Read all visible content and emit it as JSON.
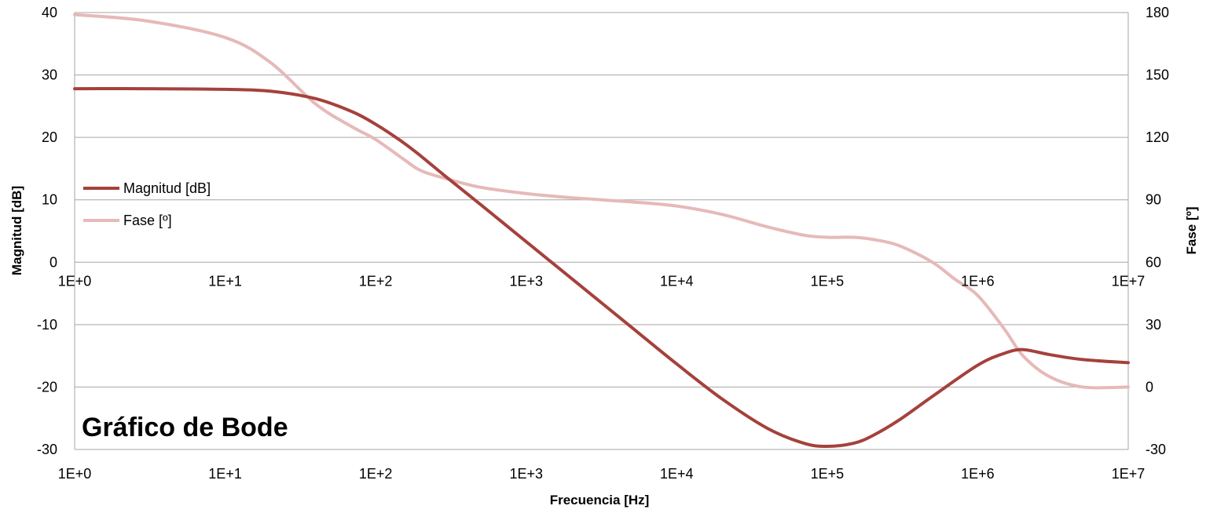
{
  "chart_data": {
    "type": "line",
    "title": "Gráfico de Bode",
    "xlabel": "Frecuencia [Hz]",
    "ylabel": "Magnitud [dB]",
    "y2label": "Fase [º]",
    "x_scale": "log",
    "xlim": [
      1,
      10000000
    ],
    "ylim": [
      -30,
      40
    ],
    "y2lim": [
      -30,
      180
    ],
    "grid": true,
    "legend_position": "left",
    "x_ticks": [
      "1E+0",
      "1E+1",
      "1E+2",
      "1E+3",
      "1E+4",
      "1E+5",
      "1E+6",
      "1E+7"
    ],
    "x_tick_values": [
      1,
      10,
      100,
      1000,
      10000,
      100000,
      1000000,
      10000000
    ],
    "y_ticks": [
      "40",
      "30",
      "20",
      "10",
      "0",
      "-10",
      "-20",
      "-30"
    ],
    "y_tick_values": [
      40,
      30,
      20,
      10,
      0,
      -10,
      -20,
      -30
    ],
    "y2_ticks": [
      "180",
      "150",
      "120",
      "90",
      "60",
      "30",
      "0",
      "-30"
    ],
    "y2_tick_values": [
      180,
      150,
      120,
      90,
      60,
      30,
      0,
      -30
    ],
    "series": [
      {
        "name": "Magnitud [dB]",
        "axis": "left",
        "color": "#a5413c",
        "x": [
          1,
          3,
          10,
          20,
          40,
          70,
          100,
          150,
          200,
          300,
          500,
          1000,
          2000,
          5000,
          10000,
          20000,
          40000,
          70000,
          100000,
          150000,
          200000,
          300000,
          500000,
          1000000,
          1500000,
          2000000,
          3000000,
          5000000,
          10000000
        ],
        "values": [
          27.8,
          27.8,
          27.7,
          27.4,
          26.2,
          24.1,
          22.1,
          19.3,
          17.0,
          13.5,
          9.2,
          3.3,
          -2.6,
          -10.4,
          -16.3,
          -21.9,
          -26.6,
          -29.0,
          -29.5,
          -29.0,
          -27.8,
          -25.3,
          -21.5,
          -16.5,
          -14.6,
          -14.0,
          -14.8,
          -15.6,
          -16.1
        ]
      },
      {
        "name": "Fase [º]",
        "axis": "right",
        "color": "#e6b9b8",
        "x": [
          1,
          3,
          10,
          20,
          40,
          70,
          100,
          150,
          200,
          300,
          500,
          1000,
          2000,
          5000,
          10000,
          20000,
          40000,
          70000,
          100000,
          150000,
          200000,
          300000,
          500000,
          700000,
          1000000,
          1500000,
          2000000,
          3000000,
          5000000,
          10000000
        ],
        "values": [
          179,
          176,
          168,
          156,
          136,
          125,
          119,
          110,
          104,
          100,
          96,
          93,
          91,
          89,
          87,
          83,
          77,
          73,
          72,
          72,
          71,
          68,
          60,
          52,
          44,
          28,
          15,
          5,
          0,
          0
        ]
      }
    ]
  }
}
